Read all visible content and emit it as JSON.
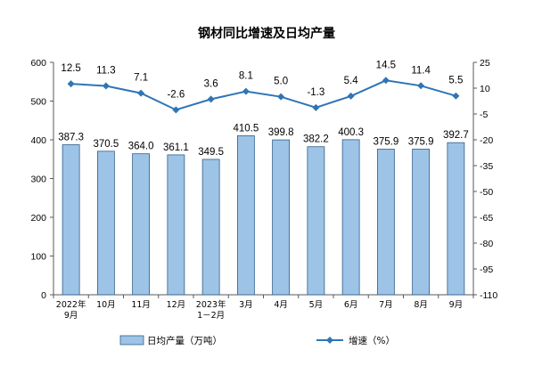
{
  "chart_data": {
    "type": "bar",
    "title": "钢材同比增速及日均产量",
    "categories": [
      [
        "2022年",
        "9月"
      ],
      [
        "10月"
      ],
      [
        "11月"
      ],
      [
        "12月"
      ],
      [
        "2023年",
        "1－2月"
      ],
      [
        "3月"
      ],
      [
        "4月"
      ],
      [
        "5月"
      ],
      [
        "6月"
      ],
      [
        "7月"
      ],
      [
        "8月"
      ],
      [
        "9月"
      ]
    ],
    "series": [
      {
        "name": "日均产量（万吨）",
        "type": "bar",
        "axis": "left",
        "color": "#9dc3e6",
        "values": [
          387.3,
          370.5,
          364.0,
          361.1,
          349.5,
          410.5,
          399.8,
          382.2,
          400.3,
          375.9,
          375.9,
          392.7
        ],
        "labels": [
          "387.3",
          "370.5",
          "364.0",
          "361.1",
          "349.5",
          "410.5",
          "399.8",
          "382.2",
          "400.3",
          "375.9",
          "375.9",
          "392.7"
        ]
      },
      {
        "name": "增速（%）",
        "type": "line",
        "axis": "right",
        "color": "#2e75b6",
        "values": [
          12.5,
          11.3,
          7.1,
          -2.6,
          3.6,
          8.1,
          5.0,
          -1.3,
          5.4,
          14.5,
          11.4,
          5.5
        ],
        "labels": [
          "12.5",
          "11.3",
          "7.1",
          "-2.6",
          "3.6",
          "8.1",
          "5.0",
          "-1.3",
          "5.4",
          "14.5",
          "11.4",
          "5.5"
        ]
      }
    ],
    "y_left": {
      "min": 0,
      "max": 600,
      "ticks": [
        0,
        100,
        200,
        300,
        400,
        500,
        600
      ]
    },
    "y_right": {
      "min": -110,
      "max": 25,
      "ticks": [
        25,
        10,
        -5,
        -20,
        -35,
        -50,
        -65,
        -80,
        -95,
        -110
      ]
    },
    "legend": {
      "position": "bottom"
    },
    "grid": false
  }
}
